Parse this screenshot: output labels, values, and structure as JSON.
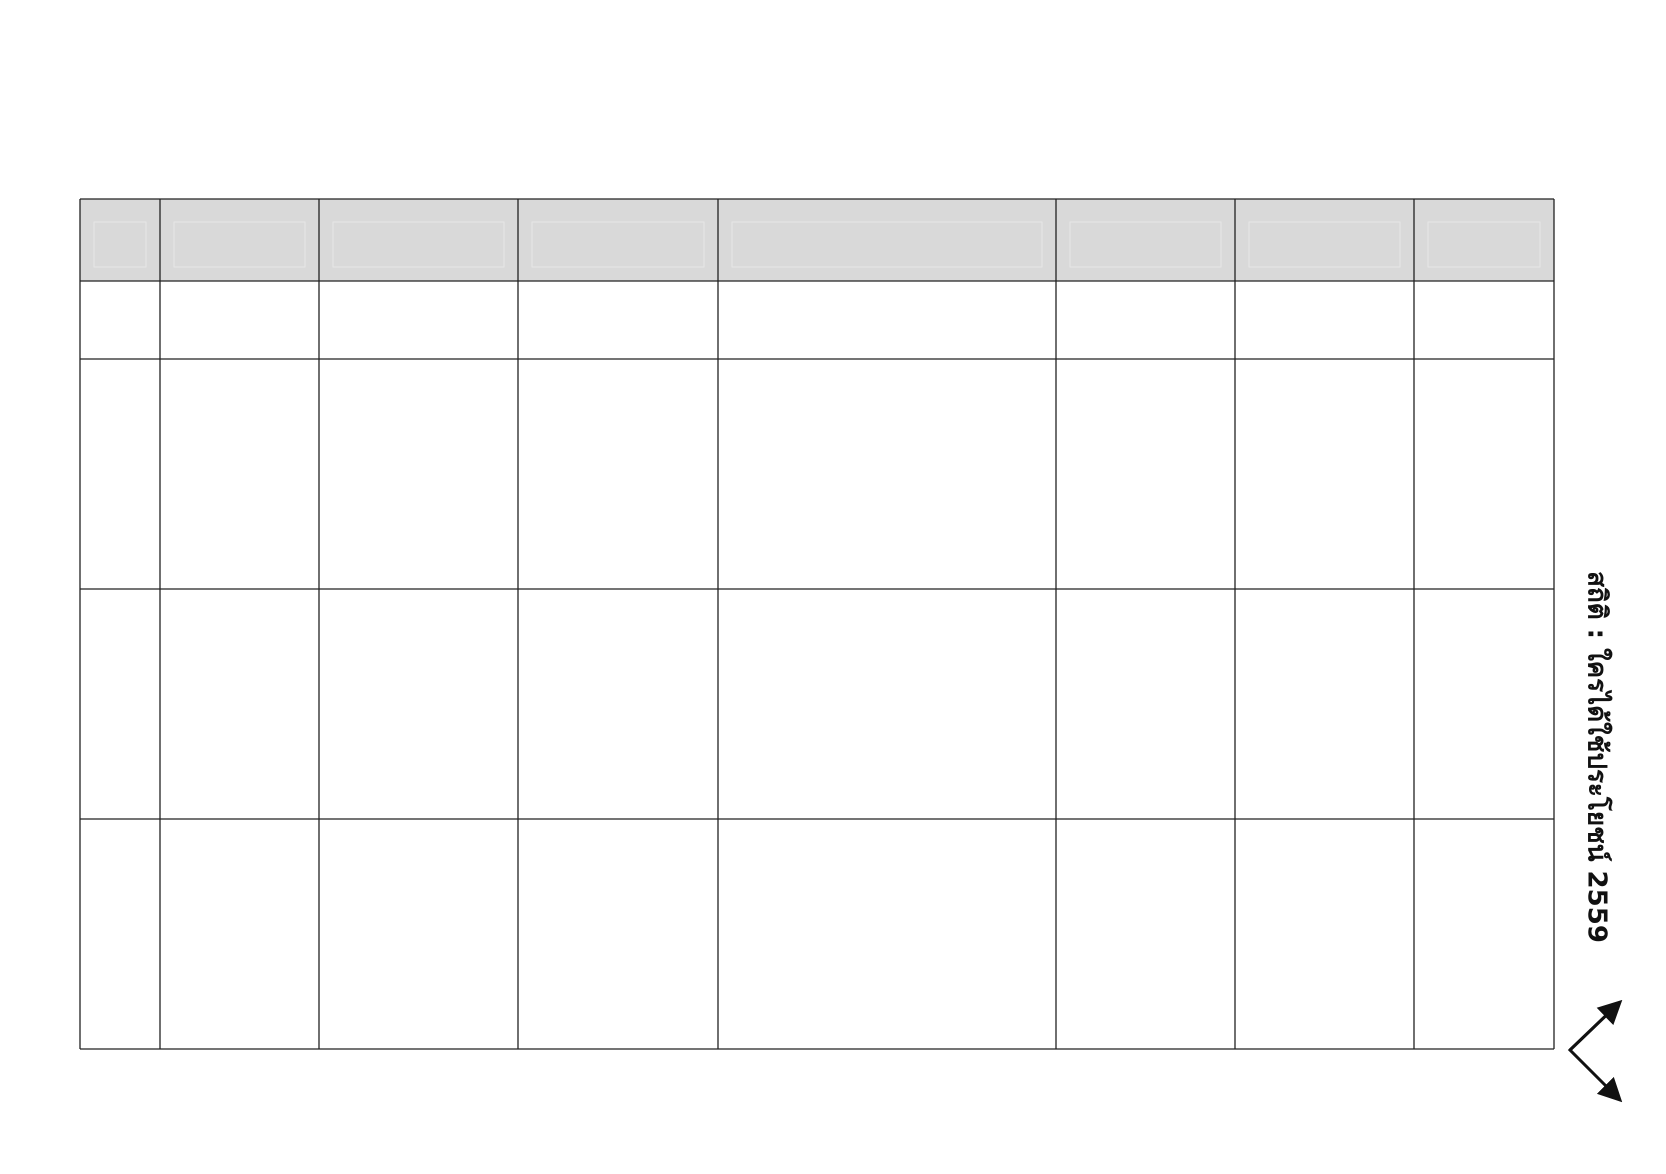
{
  "table": {
    "header_fill": "#d9d9d9",
    "line_color": "#222222",
    "columns": 8,
    "body_rows": 4,
    "cells": []
  },
  "side_caption": "สถิติ : ใครได้ใช้ประโยชน์ 2559",
  "arrow_icon": "chevron-double-arrow"
}
